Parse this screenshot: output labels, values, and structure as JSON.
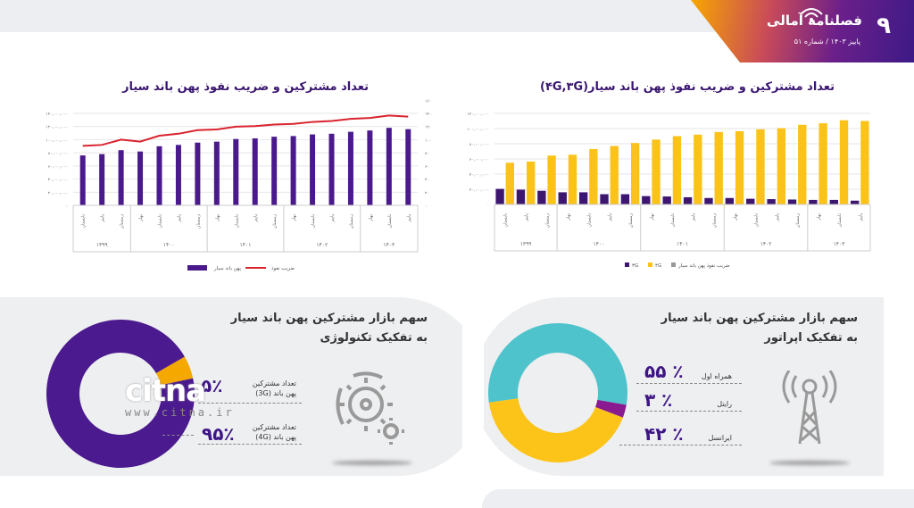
{
  "header": {
    "page_number": "۹",
    "magazine_title": "فصلنامه آمالی",
    "issue": "پاییز ۱۴۰۳ /  شماره ۵۱"
  },
  "chart_data": [
    {
      "type": "bar",
      "title": "تعداد مشترکین و ضریب نفوذ پهن باند سیار",
      "categories": [
        "تابستان",
        "پاییز",
        "زمستان",
        "بهار",
        "تابستان",
        "پاییز",
        "زمستان",
        "بهار",
        "تابستان",
        "پاییز",
        "زمستان",
        "بهار",
        "تابستان",
        "پاییز",
        "زمستان",
        "بهار",
        "تابستان",
        "پاییز"
      ],
      "groups": [
        {
          "label": "۱۳۹۹",
          "count": 3
        },
        {
          "label": "۱۴۰۰",
          "count": 4
        },
        {
          "label": "۱۴۰۱",
          "count": 4
        },
        {
          "label": "۱۴۰۲",
          "count": 4
        },
        {
          "label": "۱۴۰۳",
          "count": 3
        }
      ],
      "ylim": [
        0,
        140000000
      ],
      "y2lim": [
        0,
        160
      ],
      "yticks": [
        "۰",
        "۲۰,۰۰۰,۰۰۰",
        "۴۰,۰۰۰,۰۰۰",
        "۶۰,۰۰۰,۰۰۰",
        "۸۰,۰۰۰,۰۰۰",
        "۱۰۰,۰۰۰,۰۰۰",
        "۱۲۰,۰۰۰,۰۰۰",
        "۱۴۰,۰۰۰,۰۰۰"
      ],
      "y2ticks": [
        "۰",
        "۲۰",
        "۴۰",
        "۶۰",
        "۸۰",
        "۱۰۰",
        "۱۲۰",
        "۱۴۰",
        "۱۶۰"
      ],
      "grid": true,
      "legend": "bottom",
      "series": [
        {
          "name": "پهن باند سیار",
          "type": "bar",
          "color": "#4a1a8c",
          "values": [
            76000000,
            78000000,
            84000000,
            82000000,
            90000000,
            92000000,
            95500000,
            97000000,
            101000000,
            102000000,
            104500000,
            105500000,
            108000000,
            109000000,
            112000000,
            114000000,
            118000000,
            116000000
          ]
        },
        {
          "name": "ضریب نفوذ",
          "type": "line",
          "axis": "right",
          "color": "#d9232e",
          "values": [
            90.6,
            92,
            100,
            97,
            106,
            109,
            114.5,
            115.5,
            119.7,
            120.7,
            123,
            124,
            127,
            128.5,
            131.6,
            133,
            136.8,
            135
          ]
        }
      ]
    },
    {
      "type": "bar",
      "title": "تعداد مشترکین و ضریب نفوذ پهن باند سیار(۴G,۳G)",
      "categories": [
        "تابستان",
        "پاییز",
        "زمستان",
        "بهار",
        "تابستان",
        "پاییز",
        "زمستان",
        "بهار",
        "تابستان",
        "پاییز",
        "زمستان",
        "بهار",
        "تابستان",
        "پاییز",
        "زمستان",
        "بهار",
        "تابستان",
        "پاییز"
      ],
      "groups": [
        {
          "label": "۱۳۹۹",
          "count": 3
        },
        {
          "label": "۱۴۰۰",
          "count": 4
        },
        {
          "label": "۱۴۰۱",
          "count": 4
        },
        {
          "label": "۱۴۰۲",
          "count": 4
        },
        {
          "label": "۱۴۰۳",
          "count": 3
        }
      ],
      "ylim": [
        0,
        120000000
      ],
      "yticks": [
        "۰",
        "۲۰,۰۰۰,۰۰۰",
        "۴۰,۰۰۰,۰۰۰",
        "۶۰,۰۰۰,۰۰۰",
        "۸۰,۰۰۰,۰۰۰",
        "۱۰۰,۰۰۰,۰۰۰",
        "۱۲۰,۰۰۰,۰۰۰"
      ],
      "grid": true,
      "legend": "bottom",
      "series": [
        {
          "name": "۳G",
          "color": "#3d1670",
          "values": [
            20500000,
            19500000,
            18000000,
            16000000,
            16000000,
            13500000,
            13500000,
            11000000,
            10500000,
            9500000,
            8500000,
            8500000,
            7500000,
            7000000,
            6500000,
            6000000,
            6000000,
            5000000
          ]
        },
        {
          "name": "۴G",
          "color": "#fbc31a",
          "values": [
            55000000,
            56500000,
            64500000,
            65500000,
            73000000,
            77000000,
            81000000,
            85500000,
            90000000,
            92000000,
            95500000,
            96500000,
            99000000,
            100500000,
            105000000,
            107000000,
            111000000,
            110000000
          ]
        }
      ],
      "extra_legend": {
        "name": "ضریب نفوذ پهن باند سیار",
        "color": "#999999"
      }
    }
  ],
  "operator_share": {
    "title_line1": "سهم بازار مشترکین پهن باند سیار",
    "title_line2": "به تفکیک اپراتور",
    "items": [
      {
        "label": "همراه اول",
        "pct": "۵۵ ٪",
        "value": 55,
        "color": "#4ec3cc"
      },
      {
        "label": "رایتل",
        "pct": "۳ ٪",
        "value": 3,
        "color": "#8a1a8f"
      },
      {
        "label": "ایرانسل",
        "pct": "۴۲ ٪",
        "value": 42,
        "color": "#fcc419"
      }
    ]
  },
  "tech_share": {
    "title_line1": "سهم بازار مشترکین پهن باند سیار",
    "title_line2": "به تفکیک تکنولوژی",
    "items": [
      {
        "label1": "تعداد مشترکین",
        "label2": "پهن باند (3G)",
        "pct": "۵٪",
        "value": 5,
        "color": "#f5a800"
      },
      {
        "label1": "تعداد مشترکین",
        "label2": "پهن باند (4G)",
        "pct": "۹۵٪",
        "value": 95,
        "color": "#4b1a8e"
      }
    ]
  },
  "watermark": {
    "logo": "citna",
    "url": "www.citna.ir"
  }
}
